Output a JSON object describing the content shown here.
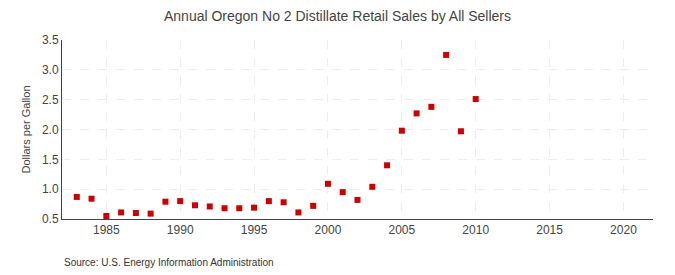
{
  "chart_data": {
    "type": "scatter",
    "title": "Annual Oregon No 2 Distillate Retail Sales by All Sellers",
    "ylabel": "Dollars per Gallon",
    "annotations": [
      "Source: U.S. Energy Information Administration"
    ],
    "x": [
      1983,
      1984,
      1985,
      1986,
      1987,
      1988,
      1989,
      1990,
      1991,
      1992,
      1993,
      1994,
      1995,
      1996,
      1997,
      1998,
      1999,
      2000,
      2001,
      2002,
      2003,
      2004,
      2005,
      2006,
      2007,
      2008,
      2009,
      2010
    ],
    "values": [
      0.87,
      0.84,
      0.55,
      0.61,
      0.6,
      0.59,
      0.79,
      0.8,
      0.73,
      0.71,
      0.68,
      0.68,
      0.69,
      0.8,
      0.78,
      0.61,
      0.72,
      1.09,
      0.95,
      0.82,
      1.04,
      1.4,
      1.98,
      2.27,
      2.38,
      3.25,
      1.97,
      2.51
    ],
    "color": "#cc0000",
    "marker": "square",
    "xlim": [
      1982,
      2022
    ],
    "xticks": [
      1985,
      1990,
      1995,
      2000,
      2005,
      2010,
      2015,
      2020
    ],
    "ylim": [
      0.5,
      3.5
    ],
    "yticks": [
      0.5,
      {
        "value": 1,
        "label": "1.0"
      },
      1.5,
      {
        "value": 2,
        "label": "2.0"
      },
      2.5,
      {
        "value": 3,
        "label": "3.0"
      },
      3.5
    ],
    "grid": true
  }
}
